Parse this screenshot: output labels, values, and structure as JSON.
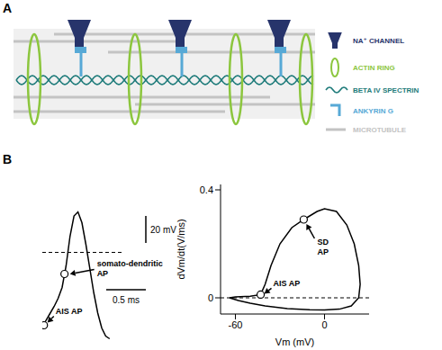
{
  "diagram": {
    "label": "A",
    "legend": [
      {
        "label": "NA⁺ CHANNEL",
        "color": "#27346b"
      },
      {
        "label": "ACTIN RING",
        "color": "#8cc63e"
      },
      {
        "label": "BETA IV SPECTRIN",
        "color": "#1e7b7a"
      },
      {
        "label": "ANKYRIN G",
        "color": "#57a9d6"
      },
      {
        "label": "MICROTUBULE",
        "color": "#c3c3c3"
      }
    ]
  },
  "chart_data": [
    {
      "panel": "B",
      "type": "line",
      "x": [
        0,
        0.05,
        0.1,
        0.15,
        0.2,
        0.25,
        0.3,
        0.35,
        0.4,
        0.45,
        0.5,
        0.55,
        0.6,
        0.65,
        0.7,
        0.75,
        0.8,
        0.85
      ],
      "values": [
        -56,
        -50,
        -45,
        -40,
        -34,
        -26,
        -10,
        12,
        27,
        30,
        22,
        6,
        -12,
        -30,
        -45,
        -56,
        -62,
        -64
      ],
      "color": "#000000",
      "xlim": [
        0,
        1
      ],
      "ylim": [
        -65,
        35
      ],
      "tick_labels": false,
      "reference_line": {
        "y": 0,
        "line_style": "dashed"
      },
      "scale_bars": [
        {
          "label": "20 mV",
          "value": 20,
          "axis": "y"
        },
        {
          "label": "0.5 ms",
          "value": 0.5,
          "axis": "x"
        }
      ],
      "annotations": [
        {
          "text": "AIS AP",
          "x": 0.02,
          "y": -54
        },
        {
          "text": "somato-dendritic AP",
          "x": 0.28,
          "y": -16
        }
      ]
    },
    {
      "type": "line",
      "x": [
        -64,
        -60,
        -50,
        -43,
        -40,
        -36,
        -30,
        -22,
        -14,
        -5,
        0,
        8,
        15,
        20,
        23,
        24,
        23,
        18,
        10,
        0,
        -10,
        -25,
        -40,
        -50,
        -58,
        -64
      ],
      "values": [
        0,
        0.003,
        0.006,
        0.012,
        0.05,
        0.12,
        0.2,
        0.26,
        0.29,
        0.32,
        0.33,
        0.32,
        0.27,
        0.2,
        0.12,
        0.05,
        0,
        -0.03,
        -0.042,
        -0.045,
        -0.044,
        -0.04,
        -0.03,
        -0.02,
        -0.01,
        0
      ],
      "color": "#000000",
      "xlim": [
        -70,
        30
      ],
      "ylim": [
        -0.06,
        0.42
      ],
      "xticks": [
        -60,
        0
      ],
      "yticks": [
        0,
        0.4
      ],
      "x_label": "Vm (mV)",
      "y_label": "dVm/dt(V/ms)",
      "reference_line": {
        "y": 0,
        "line_style": "dashed"
      },
      "annotations": [
        {
          "text": "SD AP",
          "x": -14,
          "y": 0.29
        },
        {
          "text": "AIS AP",
          "x": -43,
          "y": 0.012
        }
      ]
    }
  ]
}
